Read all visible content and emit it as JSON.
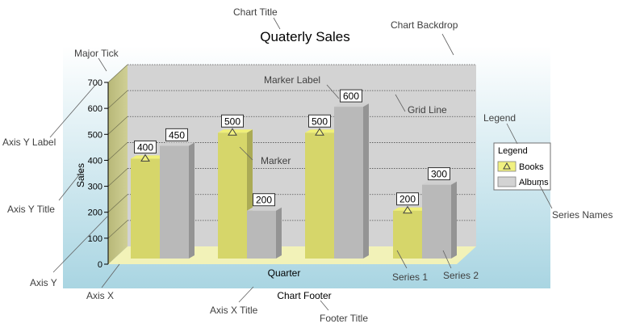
{
  "chart_data": {
    "type": "bar",
    "title": "Quaterly Sales",
    "xlabel": "Quarter",
    "ylabel": "Sales",
    "footer": "Chart Footer",
    "categories": [
      "",
      "",
      "",
      ""
    ],
    "series": [
      {
        "name": "Books",
        "values": [
          400,
          500,
          500,
          200
        ],
        "color": "#d6d66a",
        "marker": "triangle"
      },
      {
        "name": "Albums",
        "values": [
          450,
          200,
          600,
          300
        ],
        "color": "#b9b9b9"
      }
    ],
    "ylim": [
      0,
      700
    ],
    "yticks": [
      "0",
      "100",
      "200",
      "300",
      "400",
      "500",
      "600",
      "700"
    ],
    "grid": true,
    "legend": {
      "title": "Legend",
      "position": "right"
    },
    "style": "3d",
    "colors": {
      "wall": "#d3d3d3",
      "side_wall": "#c0c080",
      "floor": "#f2f2b8",
      "backdrop_top": "#ffffff",
      "backdrop_bottom": "#a9d5e2"
    }
  },
  "annotations": {
    "chart_title": "Chart Title",
    "chart_backdrop": "Chart Backdrop",
    "major_tick": "Major Tick",
    "marker_label": "Marker Label",
    "grid_line": "Grid Line",
    "legend": "Legend",
    "axis_y_label": "Axis Y Label",
    "marker": "Marker",
    "axis_y_title": "Axis Y Title",
    "series_names": "Series Names",
    "axis_y": "Axis Y",
    "axis_x": "Axis X",
    "axis_x_title": "Axis X Title",
    "series_1": "Series 1",
    "series_2": "Series 2",
    "footer_title": "Footer Title"
  }
}
